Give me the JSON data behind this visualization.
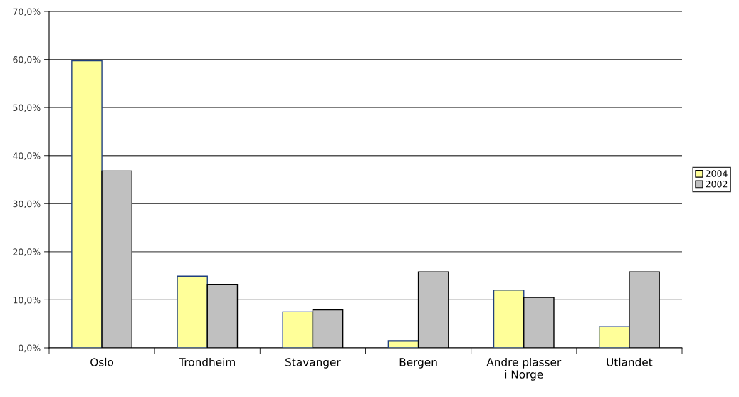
{
  "chart_data": {
    "type": "bar",
    "categories": [
      "Oslo",
      "Trondheim",
      "Stavanger",
      "Bergen",
      "Andre plasser\ni Norge",
      "Utlandet"
    ],
    "series": [
      {
        "name": "2004",
        "color": "#ffff99",
        "values": [
          59.7,
          14.9,
          7.5,
          1.5,
          12.0,
          4.4
        ]
      },
      {
        "name": "2002",
        "color": "#c0c0c0",
        "values": [
          36.8,
          13.2,
          7.9,
          15.8,
          10.5,
          15.8
        ]
      }
    ],
    "ylim": [
      0,
      70
    ],
    "yticks": [
      {
        "value": 0,
        "label": "0,0%"
      },
      {
        "value": 10,
        "label": "10,0%"
      },
      {
        "value": 20,
        "label": "20,0%"
      },
      {
        "value": 30,
        "label": "30,0%"
      },
      {
        "value": 40,
        "label": "40,0%"
      },
      {
        "value": 50,
        "label": "50,0%"
      },
      {
        "value": 60,
        "label": "60,0%"
      },
      {
        "value": 70,
        "label": "70,0%"
      }
    ],
    "grid": "y",
    "legend": "right"
  }
}
